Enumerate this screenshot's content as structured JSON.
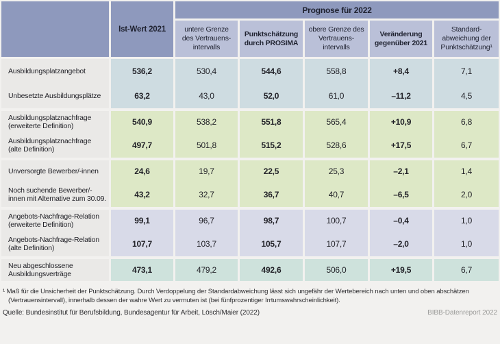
{
  "colors": {
    "bg": "#f2f1ef",
    "hdr-dark": "#8e99bd",
    "hdr-light": "#bac0d8",
    "lbl-gray": "#eae9e7",
    "grp-blue": "#cedce1",
    "grp-green": "#dde8c6",
    "grp-purple": "#d8dae8",
    "grp-teal": "#cee2dc"
  },
  "table": {
    "header": {
      "ist_wert": "Ist-Wert 2021",
      "prognose": "Prognose für 2022",
      "sub": [
        "untere Grenze des Vertrauens-intervalls",
        "Punktschätzung durch PROSIMA",
        "obere Grenze des Vertrauens-intervalls",
        "Veränderung gegenüber 2021",
        "Standard-abweichung der Punktschätzung¹"
      ]
    },
    "rows": [
      {
        "label": "Ausbildungsplatzangebot",
        "ist": "536,2",
        "lower": "530,4",
        "point": "544,6",
        "upper": "558,8",
        "change": "+8,4",
        "std": "7,1"
      },
      {
        "label": "Unbesetzte Ausbildungsplätze",
        "ist": "63,2",
        "lower": "43,0",
        "point": "52,0",
        "upper": "61,0",
        "change": "–11,2",
        "std": "4,5"
      },
      {
        "label": "Ausbildungsplatznachfrage (erweiterte Definition)",
        "ist": "540,9",
        "lower": "538,2",
        "point": "551,8",
        "upper": "565,4",
        "change": "+10,9",
        "std": "6,8"
      },
      {
        "label": "Ausbildungsplatznachfrage (alte Definition)",
        "ist": "497,7",
        "lower": "501,8",
        "point": "515,2",
        "upper": "528,6",
        "change": "+17,5",
        "std": "6,7"
      },
      {
        "label": "Unversorgte Bewerber/-innen",
        "ist": "24,6",
        "lower": "19,7",
        "point": "22,5",
        "upper": "25,3",
        "change": "–2,1",
        "std": "1,4"
      },
      {
        "label": "Noch suchende Bewerber/-innen mit Alternative zum 30.09.",
        "ist": "43,2",
        "lower": "32,7",
        "point": "36,7",
        "upper": "40,7",
        "change": "–6,5",
        "std": "2,0"
      },
      {
        "label": "Angebots-Nachfrage-Relation (erweiterte Definition)",
        "ist": "99,1",
        "lower": "96,7",
        "point": "98,7",
        "upper": "100,7",
        "change": "–0,4",
        "std": "1,0"
      },
      {
        "label": "Angebots-Nachfrage-Relation (alte Definition)",
        "ist": "107,7",
        "lower": "103,7",
        "point": "105,7",
        "upper": "107,7",
        "change": "–2,0",
        "std": "1,0"
      },
      {
        "label": "Neu abgeschlossene Ausbildungsverträge",
        "ist": "473,1",
        "lower": "479,2",
        "point": "492,6",
        "upper": "506,0",
        "change": "+19,5",
        "std": "6,7"
      }
    ]
  },
  "footnote": "¹ Maß für die Unsicherheit der Punktschätzung. Durch Verdoppelung der Standardabweichung lässt sich ungefähr der Wertebereich nach unten und oben abschätzen (Vertrauensintervall), innerhalb dessen der wahre Wert zu vermuten ist (bei fünfprozentiger Irrtumswahrscheinlichkeit).",
  "footer": {
    "source": "Quelle: Bundesinstitut für Berufsbildung, Bundesagentur für Arbeit, Lösch/Maier (2022)",
    "report": "BIBB-Datenreport 2022"
  }
}
